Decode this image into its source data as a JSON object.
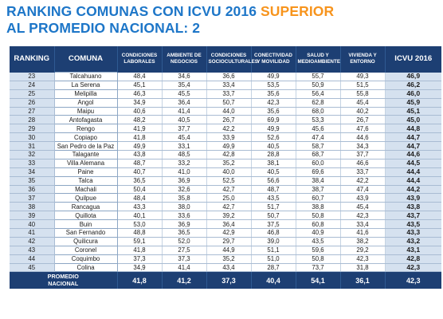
{
  "title": {
    "line1": "RANKING COMUNAS CON ICVU 2016 ",
    "highlight": "SUPERIOR",
    "line2": "AL PROMEDIO NACIONAL: 2"
  },
  "colors": {
    "title": "#1d76c8",
    "highlight": "#f7941d",
    "header": "#1d3f73",
    "shaded": "#d5e1ef"
  },
  "table": {
    "headers": [
      "RANKING",
      "COMUNA",
      "CONDICIONES LABORALES",
      "AMBIENTE DE NEGOCIOS",
      "CONDICIONES SOCIOCULTURALES",
      "CONECTIVIDAD Y MOVILIDAD",
      "SALUD Y MEDIOAMBIENTE",
      "VIVIENDA Y ENTORNO",
      "ICVU 2016"
    ],
    "rows": [
      [
        "23",
        "Talcahuano",
        "48,4",
        "34,6",
        "36,6",
        "49,9",
        "55,7",
        "49,3",
        "46,9"
      ],
      [
        "24",
        "La Serena",
        "45,1",
        "35,4",
        "33,4",
        "53,5",
        "50,9",
        "51,5",
        "46,2"
      ],
      [
        "25",
        "Melipilla",
        "46,3",
        "45,5",
        "33,7",
        "35,6",
        "56,4",
        "55,8",
        "46,0"
      ],
      [
        "26",
        "Angol",
        "34,9",
        "36,4",
        "50,7",
        "42,3",
        "62,8",
        "45,4",
        "45,9"
      ],
      [
        "27",
        "Maipu",
        "40,6",
        "41,4",
        "44,0",
        "35,6",
        "68,0",
        "40,2",
        "45,1"
      ],
      [
        "28",
        "Antofagasta",
        "48,2",
        "40,5",
        "26,7",
        "69,9",
        "53,3",
        "26,7",
        "45,0"
      ],
      [
        "29",
        "Rengo",
        "41,9",
        "37,7",
        "42,2",
        "49,9",
        "45,6",
        "47,6",
        "44,8"
      ],
      [
        "30",
        "Copiapo",
        "41,8",
        "45,4",
        "33,9",
        "52,6",
        "47,4",
        "44,6",
        "44,7"
      ],
      [
        "31",
        "San Pedro de la Paz",
        "49,9",
        "33,1",
        "49,9",
        "40,5",
        "58,7",
        "34,3",
        "44,7"
      ],
      [
        "32",
        "Talagante",
        "43,8",
        "48,5",
        "42,8",
        "28,8",
        "68,7",
        "37,7",
        "44,6"
      ],
      [
        "33",
        "Villa Alemana",
        "48,7",
        "33,2",
        "35,2",
        "38,1",
        "60,0",
        "46,6",
        "44,5"
      ],
      [
        "34",
        "Paine",
        "40,7",
        "41,0",
        "40,0",
        "40,5",
        "69,6",
        "33,7",
        "44,4"
      ],
      [
        "35",
        "Talca",
        "36,5",
        "36,9",
        "52,5",
        "56,6",
        "38,4",
        "42,2",
        "44,4"
      ],
      [
        "36",
        "Machali",
        "50,4",
        "32,6",
        "42,7",
        "48,7",
        "38,7",
        "47,4",
        "44,2"
      ],
      [
        "37",
        "Quilpue",
        "48,4",
        "35,8",
        "25,0",
        "43,5",
        "60,7",
        "43,9",
        "43,9"
      ],
      [
        "38",
        "Rancagua",
        "43,3",
        "38,0",
        "42,7",
        "51,7",
        "38,8",
        "45,4",
        "43,8"
      ],
      [
        "39",
        "Quillota",
        "40,1",
        "33,6",
        "39,2",
        "50,7",
        "50,8",
        "42,3",
        "43,7"
      ],
      [
        "40",
        "Buin",
        "53,0",
        "36,9",
        "36,4",
        "37,5",
        "60,8",
        "33,4",
        "43,5"
      ],
      [
        "41",
        "San Fernando",
        "48,8",
        "36,5",
        "42,9",
        "46,8",
        "40,9",
        "41,6",
        "43,3"
      ],
      [
        "42",
        "Quilicura",
        "59,1",
        "52,0",
        "29,7",
        "39,0",
        "43,5",
        "38,2",
        "43,2"
      ],
      [
        "43",
        "Coronel",
        "41,8",
        "27,5",
        "44,9",
        "51,1",
        "59,6",
        "29,2",
        "43,1"
      ],
      [
        "44",
        "Coquimbo",
        "37,3",
        "37,3",
        "35,2",
        "51,0",
        "50,8",
        "42,3",
        "42,8"
      ],
      [
        "45",
        "Colina",
        "34,9",
        "41,4",
        "43,4",
        "28,7",
        "73,7",
        "31,8",
        "42,3"
      ]
    ],
    "footer": {
      "label_line1": "PROMEDIO",
      "label_line2": "NACIONAL",
      "values": [
        "41,8",
        "41,2",
        "37,3",
        "40,4",
        "54,1",
        "36,1",
        "42,3"
      ]
    }
  }
}
